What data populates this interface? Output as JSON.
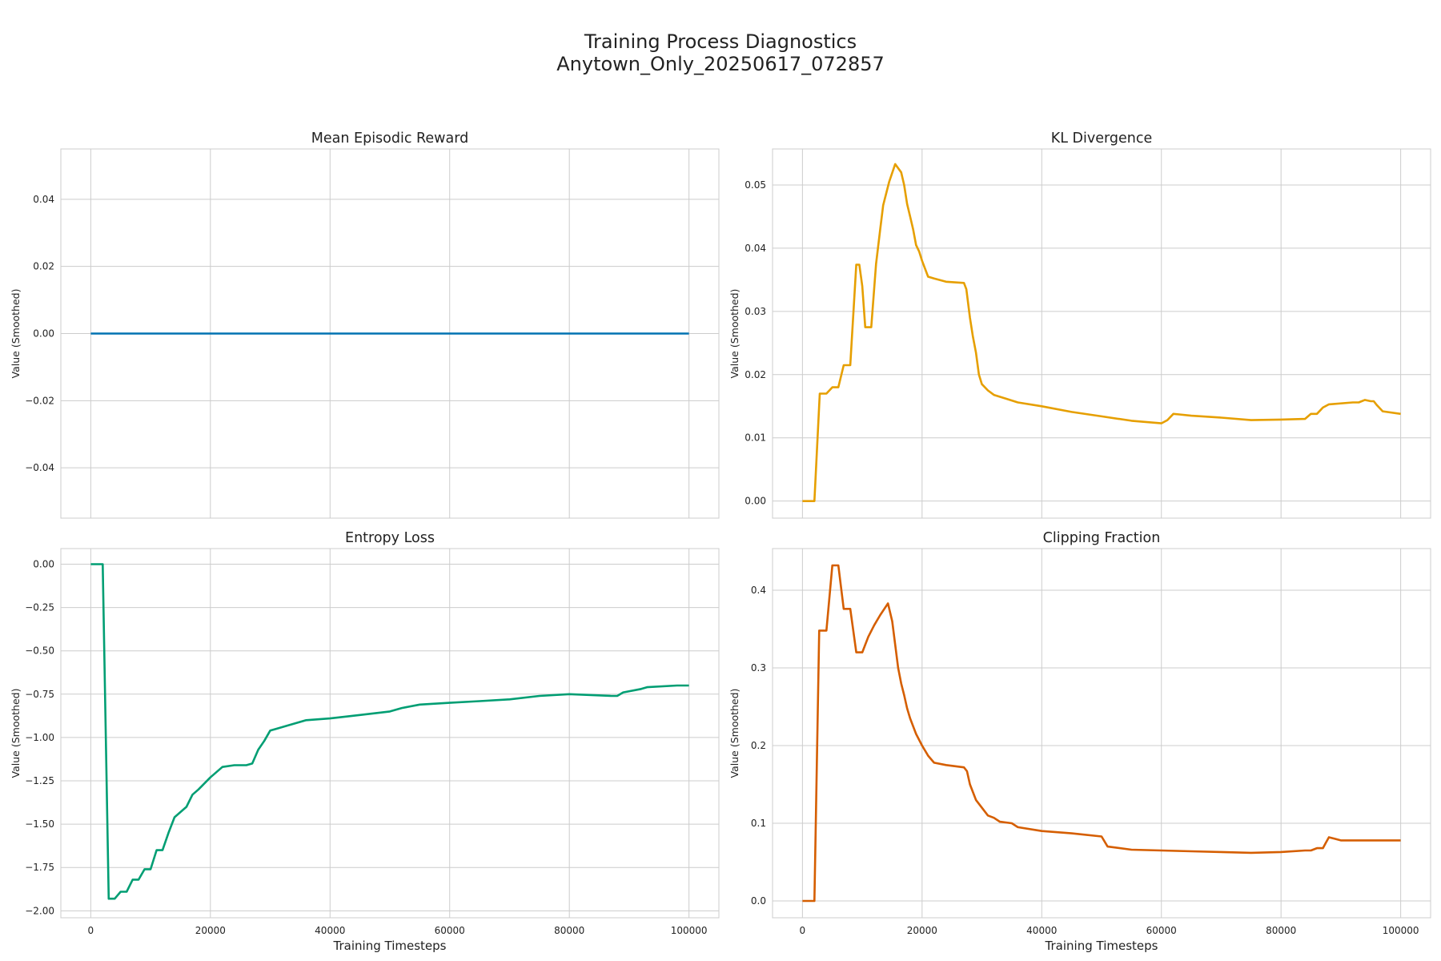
{
  "figure": {
    "title_line1": "Training Process Diagnostics",
    "title_line2": "Anytown_Only_20250617_072857"
  },
  "chart_data": [
    {
      "type": "line",
      "title": "Mean Episodic Reward",
      "xlabel": "",
      "ylabel": "Value (Smoothed)",
      "color": "#0072b2",
      "xlim": [
        -5000,
        105000
      ],
      "ylim": [
        -0.055,
        0.055
      ],
      "xticks": [
        0,
        20000,
        40000,
        60000,
        80000,
        100000
      ],
      "yticks": [
        -0.04,
        -0.02,
        0.0,
        0.02,
        0.04
      ],
      "ytick_labels": [
        "−0.04",
        "−0.02",
        "0.00",
        "0.02",
        "0.04"
      ],
      "show_xtick_labels": false,
      "grid": true,
      "x": [
        0,
        100000
      ],
      "y": [
        0,
        0
      ]
    },
    {
      "type": "line",
      "title": "KL Divergence",
      "xlabel": "",
      "ylabel": "Value (Smoothed)",
      "color": "#e69f00",
      "xlim": [
        -5000,
        105000
      ],
      "ylim": [
        -0.0027,
        0.0557
      ],
      "xticks": [
        0,
        20000,
        40000,
        60000,
        80000,
        100000
      ],
      "yticks": [
        0.0,
        0.01,
        0.02,
        0.03,
        0.04,
        0.05
      ],
      "ytick_labels": [
        "0.00",
        "0.01",
        "0.02",
        "0.03",
        "0.04",
        "0.05"
      ],
      "show_xtick_labels": false,
      "grid": true,
      "x": [
        0,
        2000,
        2900,
        4000,
        5000,
        6000,
        6900,
        7000,
        7500,
        8000,
        9000,
        9200,
        9500,
        10000,
        10500,
        11500,
        12300,
        13000,
        13500,
        14500,
        15500,
        16500,
        17000,
        17500,
        18000,
        18500,
        19000,
        19500,
        20000,
        21000,
        22000,
        24000,
        27000,
        27400,
        28000,
        28500,
        29000,
        29500,
        30000,
        31000,
        32000,
        34000,
        36000,
        40000,
        45000,
        50000,
        55000,
        60000,
        61000,
        62000,
        63000,
        65000,
        70000,
        75000,
        80000,
        84000,
        85000,
        86000,
        87000,
        88000,
        92000,
        93000,
        94000,
        95000,
        95500,
        96000,
        97000,
        100000
      ],
      "y": [
        0.0,
        0.0,
        0.017,
        0.017,
        0.018,
        0.018,
        0.0215,
        0.0215,
        0.0215,
        0.0215,
        0.0374,
        0.0374,
        0.0374,
        0.034,
        0.0275,
        0.0275,
        0.0375,
        0.043,
        0.0468,
        0.0505,
        0.0533,
        0.052,
        0.05,
        0.047,
        0.045,
        0.043,
        0.0405,
        0.0395,
        0.038,
        0.0355,
        0.0352,
        0.0347,
        0.0345,
        0.0335,
        0.029,
        0.026,
        0.0235,
        0.02,
        0.0185,
        0.0175,
        0.0168,
        0.0162,
        0.0156,
        0.015,
        0.0141,
        0.0134,
        0.0127,
        0.0123,
        0.0128,
        0.0138,
        0.0137,
        0.0135,
        0.0132,
        0.0128,
        0.0129,
        0.013,
        0.0138,
        0.0138,
        0.0148,
        0.0153,
        0.0156,
        0.0156,
        0.016,
        0.0158,
        0.0158,
        0.0152,
        0.0142,
        0.0138
      ]
    },
    {
      "type": "line",
      "title": "Entropy Loss",
      "xlabel": "Training Timesteps",
      "ylabel": "Value (Smoothed)",
      "color": "#009e73",
      "xlim": [
        -5000,
        105000
      ],
      "ylim": [
        -2.04,
        0.09
      ],
      "xticks": [
        0,
        20000,
        40000,
        60000,
        80000,
        100000
      ],
      "xtick_labels": [
        "0",
        "20000",
        "40000",
        "60000",
        "80000",
        "100000"
      ],
      "yticks": [
        -2.0,
        -1.75,
        -1.5,
        -1.25,
        -1.0,
        -0.75,
        -0.5,
        -0.25,
        0.0
      ],
      "ytick_labels": [
        "−2.00",
        "−1.75",
        "−1.50",
        "−1.25",
        "−1.00",
        "−0.75",
        "−0.50",
        "−0.25",
        "0.00"
      ],
      "show_xtick_labels": true,
      "grid": true,
      "x": [
        0,
        2000,
        3000,
        4000,
        5000,
        6000,
        7000,
        8000,
        9000,
        10000,
        11000,
        12000,
        13000,
        14000,
        16000,
        17000,
        18000,
        20000,
        22000,
        24000,
        26000,
        27000,
        28000,
        29000,
        30000,
        31000,
        33000,
        36000,
        40000,
        45000,
        50000,
        52000,
        55000,
        60000,
        65000,
        70000,
        75000,
        80000,
        87000,
        88000,
        89000,
        92000,
        93000,
        98000,
        100000
      ],
      "y": [
        0.0,
        0.0,
        -1.93,
        -1.93,
        -1.89,
        -1.89,
        -1.82,
        -1.82,
        -1.76,
        -1.76,
        -1.65,
        -1.65,
        -1.55,
        -1.46,
        -1.4,
        -1.33,
        -1.3,
        -1.23,
        -1.17,
        -1.16,
        -1.16,
        -1.15,
        -1.07,
        -1.02,
        -0.96,
        -0.95,
        -0.93,
        -0.9,
        -0.89,
        -0.87,
        -0.85,
        -0.83,
        -0.81,
        -0.8,
        -0.79,
        -0.78,
        -0.76,
        -0.75,
        -0.76,
        -0.76,
        -0.74,
        -0.72,
        -0.71,
        -0.7,
        -0.7
      ]
    },
    {
      "type": "line",
      "title": "Clipping Fraction",
      "xlabel": "Training Timesteps",
      "ylabel": "Value (Smoothed)",
      "color": "#d55e00",
      "xlim": [
        -5000,
        105000
      ],
      "ylim": [
        -0.0216,
        0.4536
      ],
      "xticks": [
        0,
        20000,
        40000,
        60000,
        80000,
        100000
      ],
      "xtick_labels": [
        "0",
        "20000",
        "40000",
        "60000",
        "80000",
        "100000"
      ],
      "yticks": [
        0.0,
        0.1,
        0.2,
        0.3,
        0.4
      ],
      "ytick_labels": [
        "0.0",
        "0.1",
        "0.2",
        "0.3",
        "0.4"
      ],
      "show_xtick_labels": true,
      "grid": true,
      "x": [
        0,
        2000,
        2800,
        4000,
        5000,
        6000,
        6900,
        7000,
        8000,
        9000,
        10000,
        11000,
        12000,
        13000,
        14300,
        15000,
        15500,
        16000,
        16500,
        17000,
        17500,
        18000,
        18500,
        19000,
        20000,
        21000,
        22000,
        24000,
        27000,
        27500,
        28000,
        29000,
        30000,
        31000,
        32000,
        33000,
        35000,
        36000,
        40000,
        45000,
        50000,
        51000,
        55000,
        60000,
        65000,
        70000,
        75000,
        80000,
        84000,
        85000,
        86000,
        87000,
        87500,
        88000,
        89000,
        90000,
        95000,
        97000,
        100000
      ],
      "y": [
        0.0,
        0.0,
        0.348,
        0.348,
        0.432,
        0.432,
        0.376,
        0.376,
        0.376,
        0.32,
        0.32,
        0.34,
        0.355,
        0.368,
        0.383,
        0.36,
        0.33,
        0.3,
        0.28,
        0.265,
        0.248,
        0.235,
        0.225,
        0.215,
        0.2,
        0.187,
        0.178,
        0.175,
        0.172,
        0.167,
        0.15,
        0.13,
        0.12,
        0.11,
        0.107,
        0.102,
        0.1,
        0.095,
        0.09,
        0.087,
        0.083,
        0.07,
        0.066,
        0.065,
        0.064,
        0.063,
        0.062,
        0.063,
        0.065,
        0.065,
        0.068,
        0.068,
        0.075,
        0.082,
        0.08,
        0.078,
        0.078,
        0.078,
        0.078
      ]
    }
  ]
}
